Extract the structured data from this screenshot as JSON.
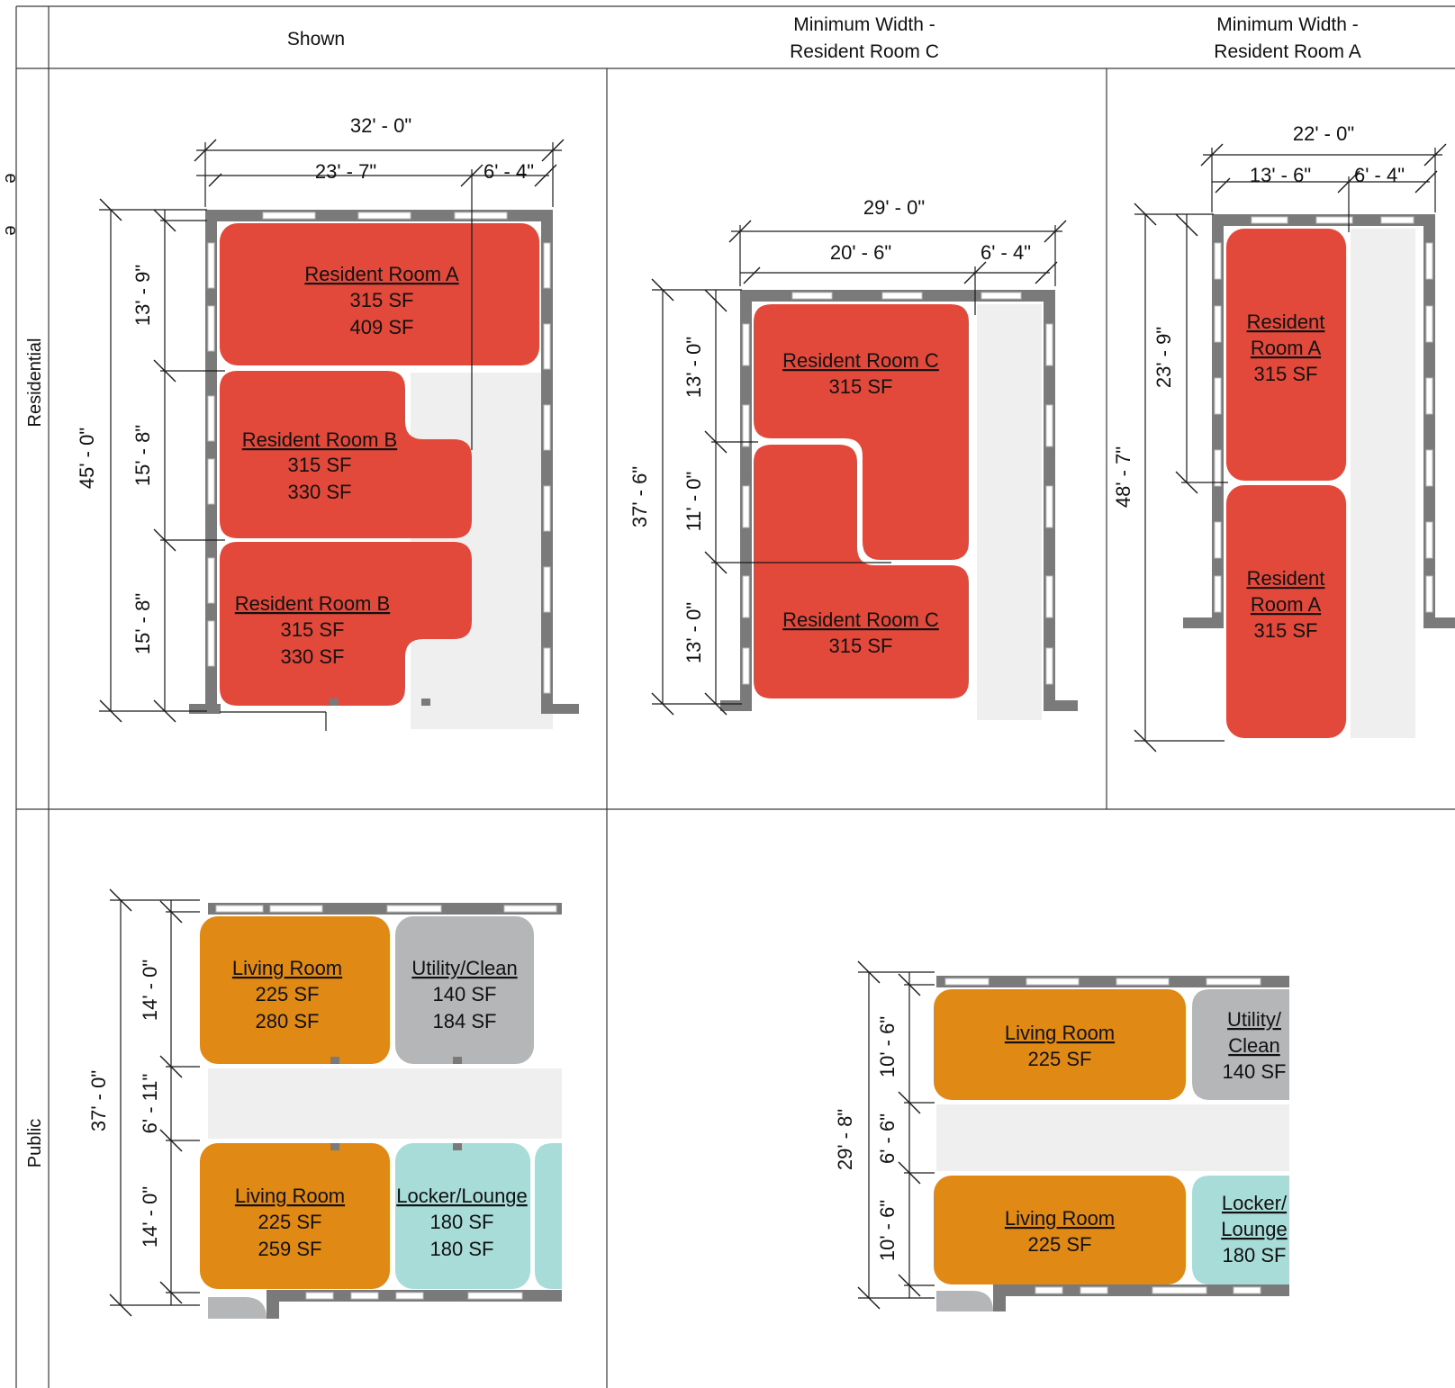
{
  "headers": {
    "shown": "Shown",
    "min_c": [
      "Minimum Width -",
      "Resident Room C"
    ],
    "min_a": [
      "Minimum Width -",
      "Resident Room A"
    ]
  },
  "rows": {
    "residential": "Residential",
    "public": "Public"
  },
  "edge_fragments": [
    "e",
    "e"
  ],
  "colors": {
    "resident": "#e2493b",
    "living": "#e08914",
    "utility": "#b4b6b8",
    "locker": "#a8dcd9",
    "corridor": "#efefef",
    "wall": "#7a7a7a"
  },
  "shown_res": {
    "dims": {
      "overall_w": "32' - 0\"",
      "left_w": "23' - 7\"",
      "right_w": "6' - 4\"",
      "overall_h": "45' - 0\"",
      "h1": "13' - 9\"",
      "h2": "15' - 8\"",
      "h3": "15' - 8\""
    },
    "rooms": [
      {
        "name": "Resident Room A",
        "sf1": "315 SF",
        "sf2": "409 SF"
      },
      {
        "name": "Resident Room B",
        "sf1": "315 SF",
        "sf2": "330 SF"
      },
      {
        "name": "Resident Room B",
        "sf1": "315 SF",
        "sf2": "330 SF"
      }
    ]
  },
  "min_c_res": {
    "dims": {
      "overall_w": "29' - 0\"",
      "left_w": "20' - 6\"",
      "right_w": "6' - 4\"",
      "overall_h": "37' - 6\"",
      "h1": "13' - 0\"",
      "h2": "11' - 0\"",
      "h3": "13' - 0\""
    },
    "rooms": [
      {
        "name": "Resident Room C",
        "sf1": "315 SF"
      },
      {
        "name": "Resident Room C",
        "sf1": "315 SF"
      }
    ]
  },
  "min_a_res": {
    "dims": {
      "overall_w": "22' - 0\"",
      "left_w": "13' - 6\"",
      "right_w": "6' - 4\"",
      "overall_h": "48' - 7\"",
      "h1": "23' - 9\""
    },
    "rooms": [
      {
        "name1": "Resident",
        "name2": "Room A",
        "sf1": "315 SF"
      },
      {
        "name1": "Resident",
        "name2": "Room A",
        "sf1": "315 SF"
      }
    ]
  },
  "shown_pub": {
    "dims": {
      "overall_h": "37' - 0\"",
      "h1": "14' - 0\"",
      "h2": "6' - 11\"",
      "h3": "14' - 0\""
    },
    "rooms": [
      {
        "name": "Living Room",
        "sf1": "225 SF",
        "sf2": "280 SF"
      },
      {
        "name": "Utility/Clean",
        "sf1": "140 SF",
        "sf2": "184 SF"
      },
      {
        "name": "Living Room",
        "sf1": "225 SF",
        "sf2": "259 SF"
      },
      {
        "name": "Locker/Lounge",
        "sf1": "180 SF",
        "sf2": "180 SF"
      }
    ]
  },
  "min_pub": {
    "dims": {
      "overall_h": "29' - 8\"",
      "h1": "10' - 6\"",
      "h2": "6' - 6\"",
      "h3": "10' - 6\""
    },
    "rooms": [
      {
        "name": "Living Room",
        "sf1": "225 SF"
      },
      {
        "name1": "Utility/",
        "name2": "Clean",
        "sf1": "140 SF"
      },
      {
        "name": "Living Room",
        "sf1": "225 SF"
      },
      {
        "name1": "Locker/",
        "name2": "Lounge",
        "sf1": "180 SF"
      }
    ]
  }
}
